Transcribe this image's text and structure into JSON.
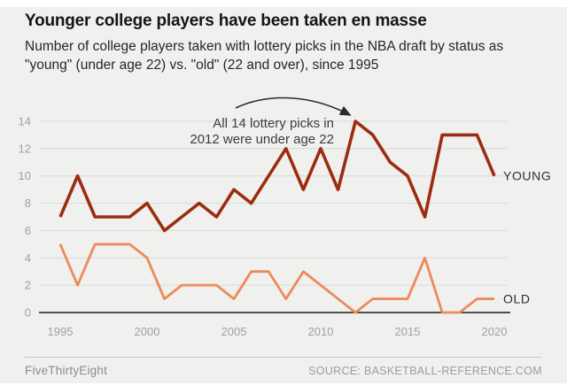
{
  "header": {
    "title": "Younger college players have been taken en masse",
    "subtitle": "Number of college players taken with lottery picks in the NBA draft by status as \"young\" (under age 22) vs. \"old\" (22 and over), since 1995"
  },
  "chart_data": {
    "type": "line",
    "x": [
      1995,
      1996,
      1997,
      1998,
      1999,
      2000,
      2001,
      2002,
      2003,
      2004,
      2005,
      2006,
      2007,
      2008,
      2009,
      2010,
      2011,
      2012,
      2013,
      2014,
      2015,
      2016,
      2017,
      2018,
      2019,
      2020
    ],
    "series": [
      {
        "name": "OLD",
        "color": "#ec8a59",
        "width": 2.8,
        "values": [
          5,
          2,
          5,
          5,
          5,
          4,
          1,
          2,
          2,
          2,
          1,
          3,
          3,
          1,
          3,
          2,
          1,
          0,
          1,
          1,
          1,
          4,
          0,
          0,
          1,
          1
        ]
      },
      {
        "name": "YOUNG",
        "color": "#9c2c10",
        "width": 3.6,
        "values": [
          7,
          10,
          7,
          7,
          7,
          8,
          6,
          7,
          8,
          7,
          9,
          8,
          10,
          12,
          9,
          12,
          9,
          14,
          13,
          11,
          10,
          7,
          13,
          13,
          13,
          10
        ]
      }
    ],
    "ylim": [
      0,
      14
    ],
    "yticks": [
      0,
      2,
      4,
      6,
      8,
      10,
      12,
      14
    ],
    "xticks": [
      1995,
      2000,
      2005,
      2010,
      2015,
      2020
    ],
    "grid": true,
    "legend_position": "line-end-labels",
    "annotation": {
      "line1": "All 14 lottery picks in",
      "line2": "2012 were under age 22",
      "target_year": 2012,
      "target_value": 14
    },
    "colors": {
      "background": "#f0f0ee",
      "gridline": "#dcdcda",
      "zero_axis": "#1a1a1a",
      "tick_text": "#a0a09e",
      "annotation_text": "#3c3c3c",
      "arrow": "#2b2b2b",
      "series_label": "#2e2e2e"
    }
  },
  "footer": {
    "brand": "FiveThirtyEight",
    "source": "SOURCE: BASKETBALL-REFERENCE.COM"
  }
}
